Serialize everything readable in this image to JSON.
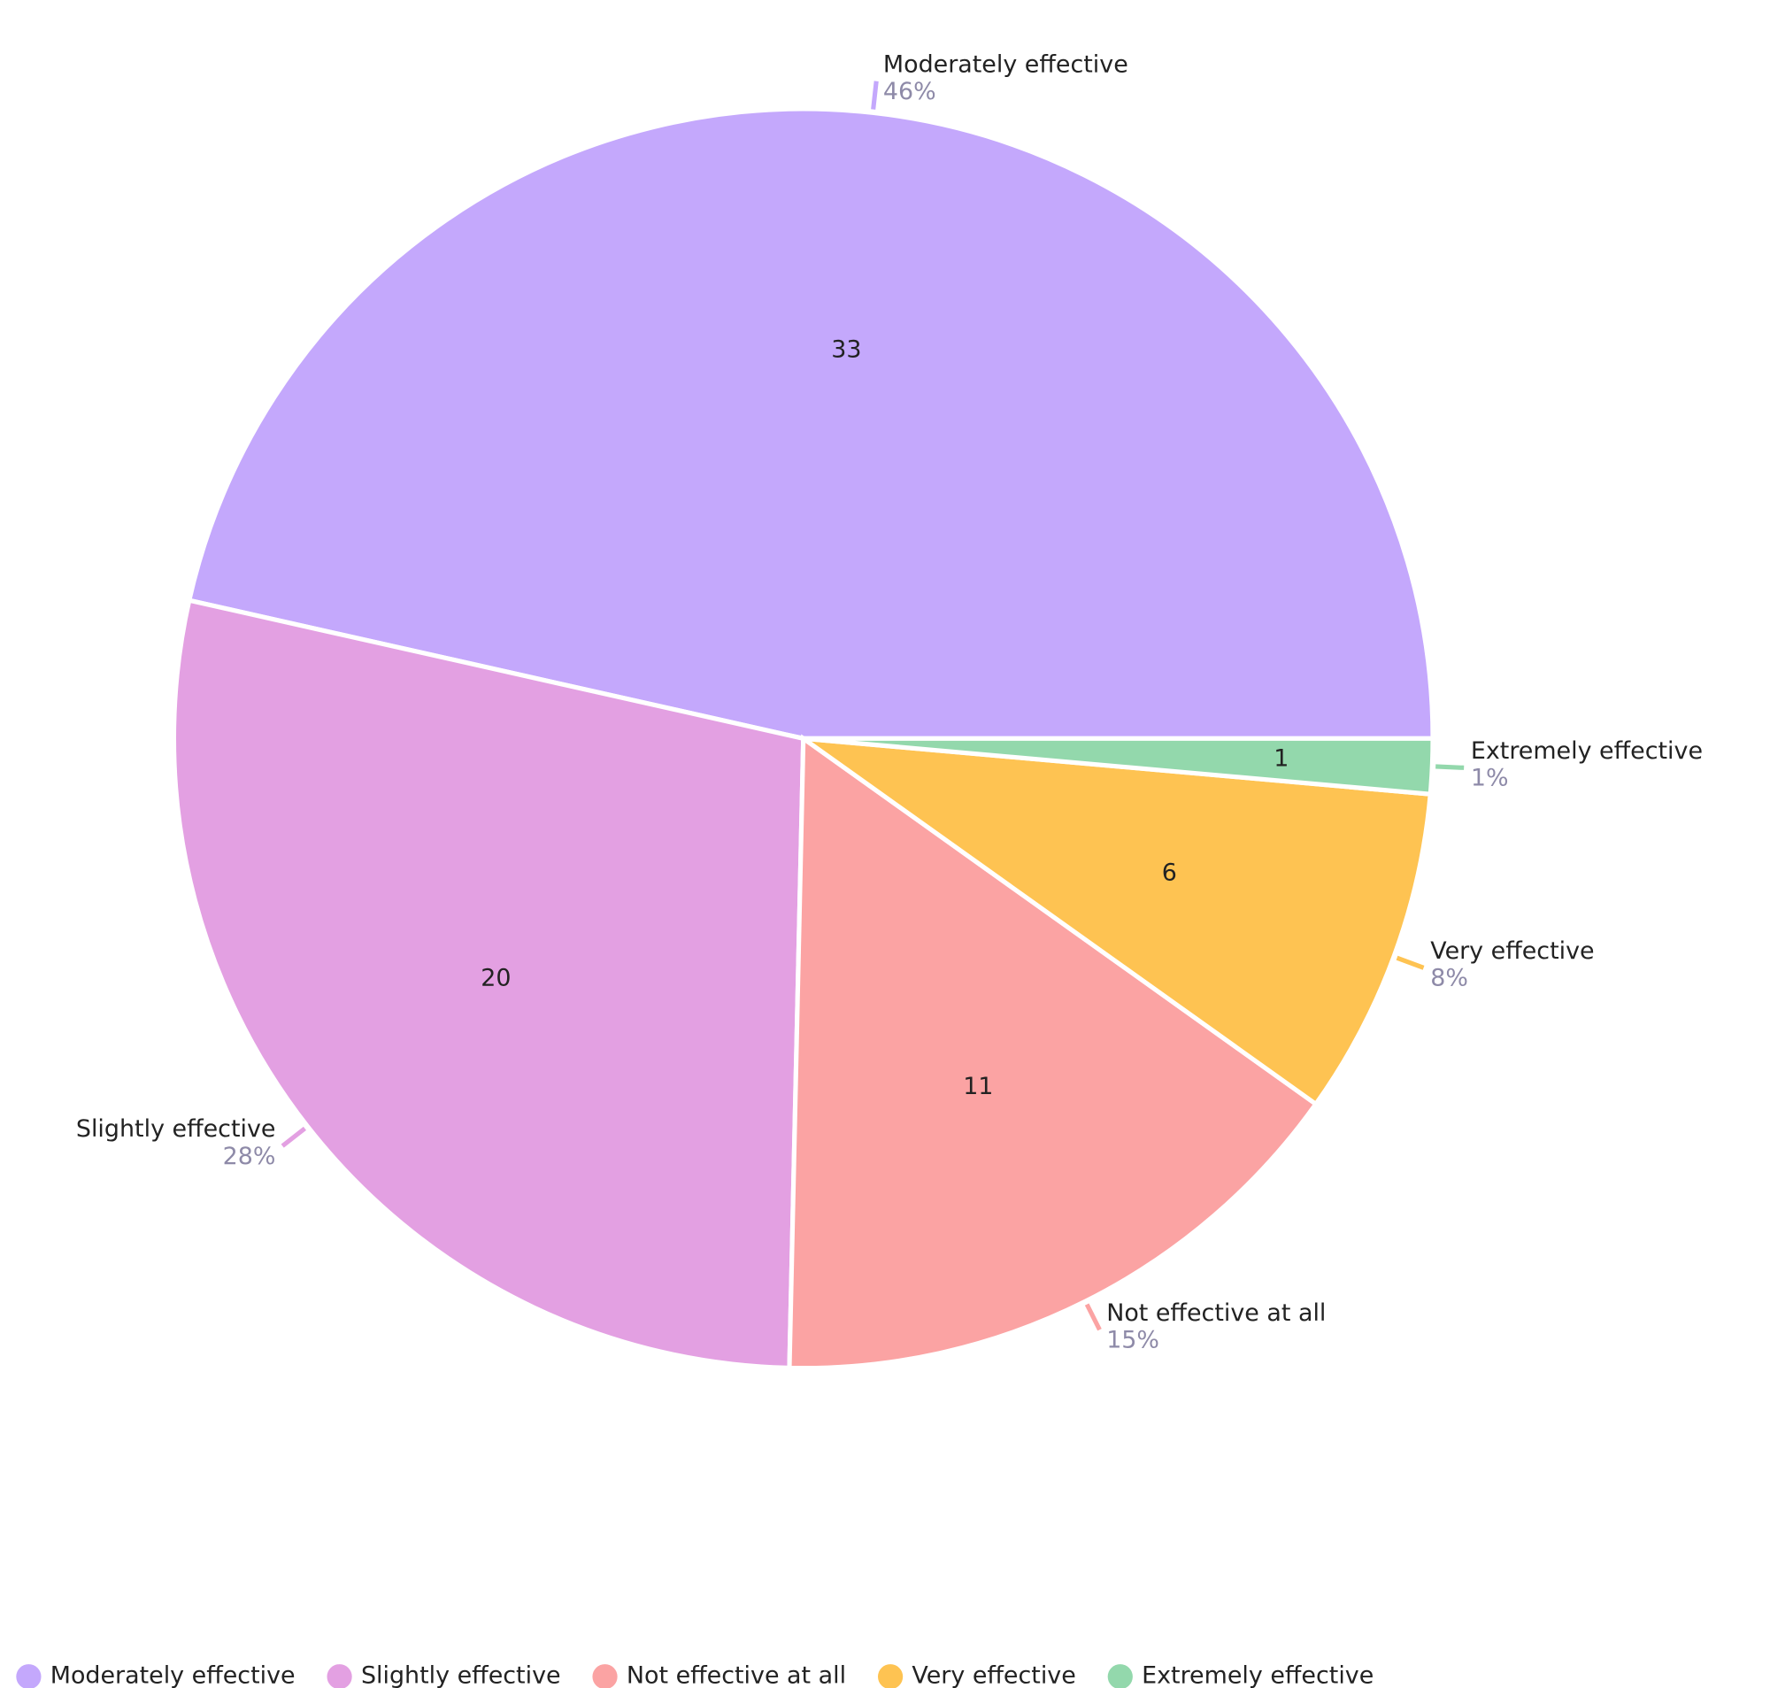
{
  "chart_data": {
    "type": "pie",
    "categories": [
      "Moderately effective",
      "Slightly effective",
      "Not effective at all",
      "Very effective",
      "Extremely effective"
    ],
    "values": [
      33,
      20,
      11,
      6,
      1
    ],
    "percent_labels": [
      "46%",
      "28%",
      "15%",
      "8%",
      "1%"
    ],
    "colors": [
      "#c4a8fc",
      "#e3a0e2",
      "#fba3a3",
      "#fec352",
      "#93d8ac"
    ],
    "legend": "bottom"
  }
}
